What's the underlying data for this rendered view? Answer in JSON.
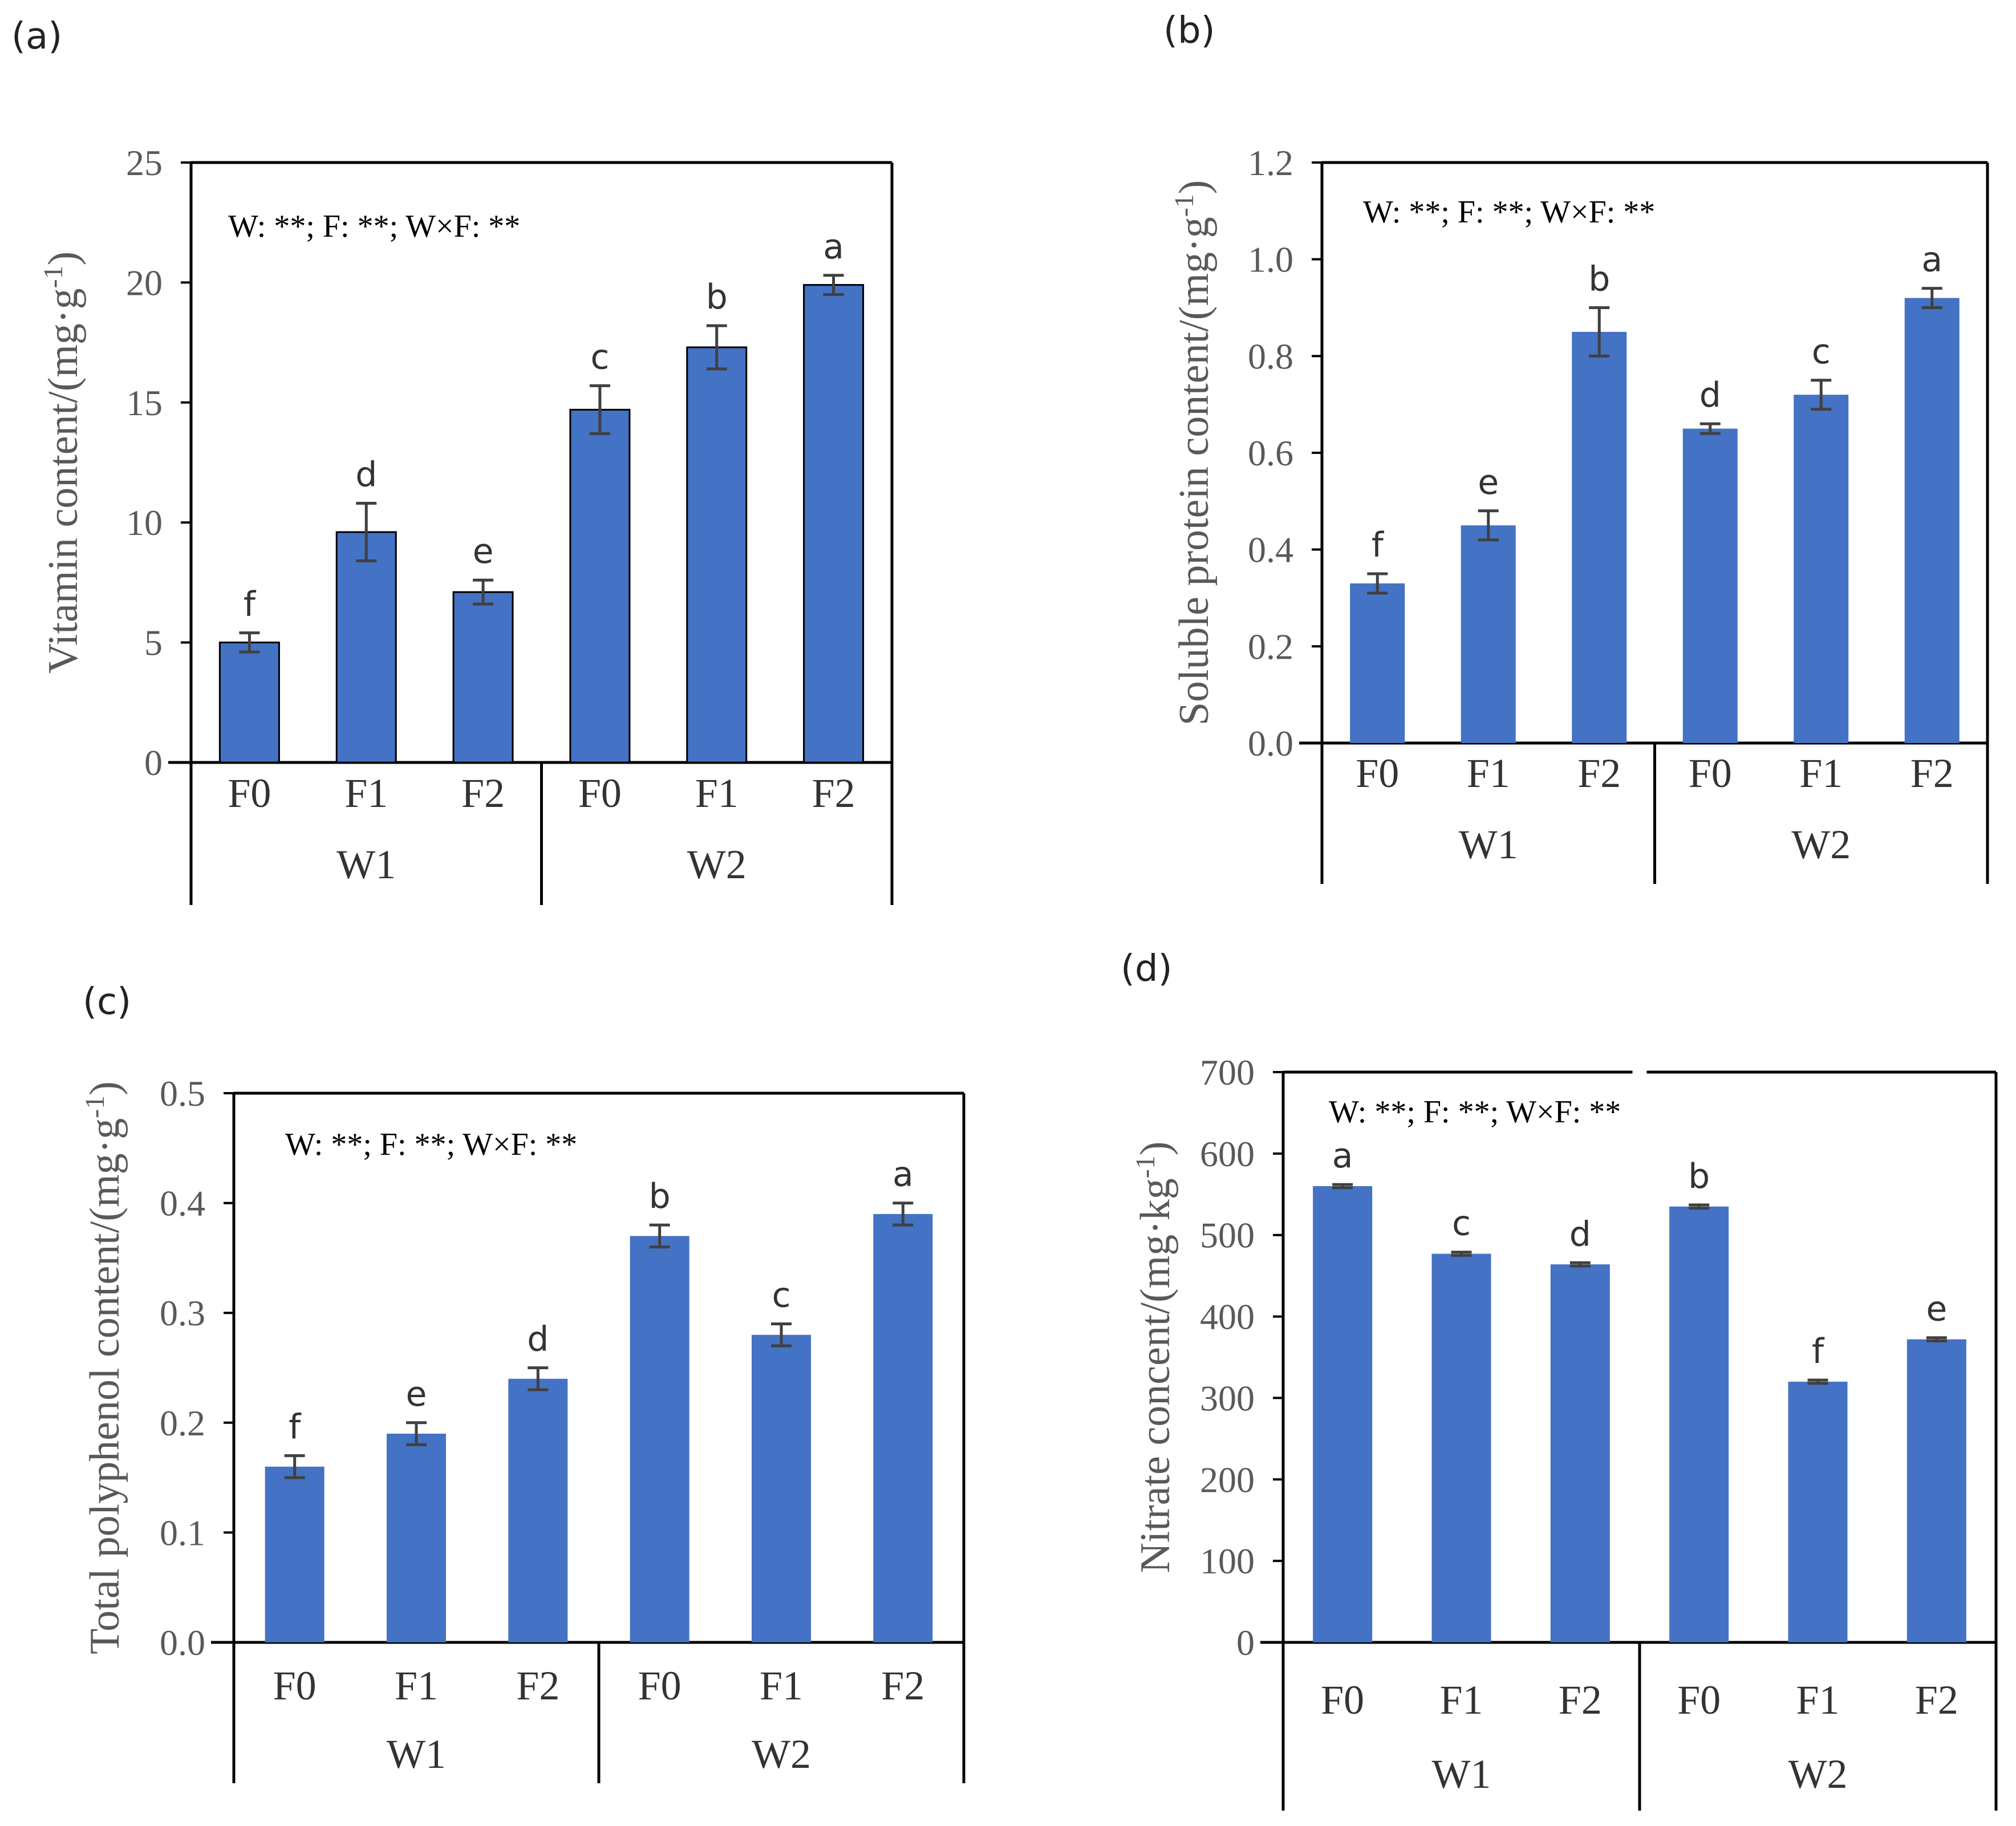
{
  "chart_data": [
    {
      "type": "bar",
      "panel_label": "(a)",
      "ylabel_main": "Vitamin content/(mg·g",
      "ylabel_sup": "-1",
      "ylabel_end": ")",
      "annotation": "W: **; F: **; W×F: **",
      "ylim": [
        0,
        25
      ],
      "yticks": [
        "0",
        "5",
        "10",
        "15",
        "20",
        "25"
      ],
      "categories": [
        "F0",
        "F1",
        "F2",
        "F0",
        "F1",
        "F2"
      ],
      "groups": [
        "W1",
        "W2"
      ],
      "values": [
        5.0,
        9.6,
        7.1,
        14.7,
        17.3,
        19.9
      ],
      "errors": [
        0.4,
        1.2,
        0.5,
        1.0,
        0.9,
        0.4
      ],
      "letters": [
        "f",
        "d",
        "e",
        "c",
        "b",
        "a"
      ],
      "bar_color": "#4472C4",
      "bar_outline": true
    },
    {
      "type": "bar",
      "panel_label": "(b)",
      "ylabel_main": "Soluble protein content/(mg·g",
      "ylabel_sup": "-1",
      "ylabel_end": ")",
      "annotation": "W: **; F: **; W×F: **",
      "ylim": [
        0,
        1.2
      ],
      "yticks": [
        "0.0",
        "0.2",
        "0.4",
        "0.6",
        "0.8",
        "1.0",
        "1.2"
      ],
      "categories": [
        "F0",
        "F1",
        "F2",
        "F0",
        "F1",
        "F2"
      ],
      "groups": [
        "W1",
        "W2"
      ],
      "values": [
        0.33,
        0.45,
        0.85,
        0.65,
        0.72,
        0.92
      ],
      "errors": [
        0.02,
        0.03,
        0.05,
        0.01,
        0.03,
        0.02
      ],
      "letters": [
        "f",
        "e",
        "b",
        "d",
        "c",
        "a"
      ],
      "bar_color": "#4472C4",
      "bar_outline": false
    },
    {
      "type": "bar",
      "panel_label": "(c)",
      "ylabel_main": "Total polyphenol content/(mg·g",
      "ylabel_sup": "-1",
      "ylabel_end": ")",
      "annotation": "W: **; F: **; W×F: **",
      "ylim": [
        0,
        0.5
      ],
      "yticks": [
        "0.0",
        "0.1",
        "0.2",
        "0.3",
        "0.4",
        "0.5"
      ],
      "categories": [
        "F0",
        "F1",
        "F2",
        "F0",
        "F1",
        "F2"
      ],
      "groups": [
        "W1",
        "W2"
      ],
      "values": [
        0.16,
        0.19,
        0.24,
        0.37,
        0.28,
        0.39
      ],
      "errors": [
        0.01,
        0.01,
        0.01,
        0.01,
        0.01,
        0.01
      ],
      "letters": [
        "f",
        "e",
        "d",
        "b",
        "c",
        "a"
      ],
      "bar_color": "#4472C4",
      "bar_outline": false
    },
    {
      "type": "bar",
      "panel_label": "(d)",
      "ylabel_main": "Nitrate concent/(mg·kg",
      "ylabel_sup": "-1",
      "ylabel_end": ")",
      "annotation": "W: **; F: **; W×F: **",
      "ylim": [
        0,
        700
      ],
      "yticks": [
        "0",
        "100",
        "200",
        "300",
        "400",
        "500",
        "600",
        "700"
      ],
      "categories": [
        "F0",
        "F1",
        "F2",
        "F0",
        "F1",
        "F2"
      ],
      "groups": [
        "W1",
        "W2"
      ],
      "values": [
        560,
        477,
        464,
        535,
        320,
        372
      ],
      "errors": [
        2,
        2,
        2,
        2,
        2,
        2
      ],
      "letters": [
        "a",
        "c",
        "d",
        "b",
        "f",
        "e"
      ],
      "bar_color": "#4472C4",
      "bar_outline": false
    }
  ]
}
